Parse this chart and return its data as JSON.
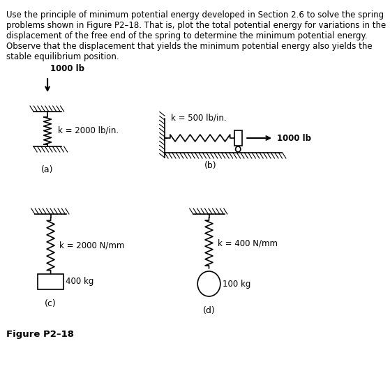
{
  "title_text": "Use the principle of minimum potential energy developed in Section 2.6 to solve the spring\nproblems shown in Figure P2–18. That is, plot the total potential energy for variations in the\ndisplacement of the free end of the spring to determine the minimum potential energy.\nObserve that the displacement that yields the minimum potential energy also yields the\nstable equilibrium position.",
  "figure_label": "Figure P2–18",
  "label_a": "(a)",
  "label_b": "(b)",
  "label_c": "(c)",
  "label_d": "(d)",
  "k_a": "k = 2000 lb/in.",
  "k_b": "k = 500 lb/in.",
  "k_c": "k = 2000 N/mm",
  "k_d": "k = 400 N/mm",
  "force_a": "1000 lb",
  "force_b": "1000 lb",
  "mass_c": "400 kg",
  "mass_d": "100 kg",
  "bg_color": "#ffffff",
  "text_color": "#000000",
  "hatch_color": "#000000",
  "spring_color": "#000000"
}
